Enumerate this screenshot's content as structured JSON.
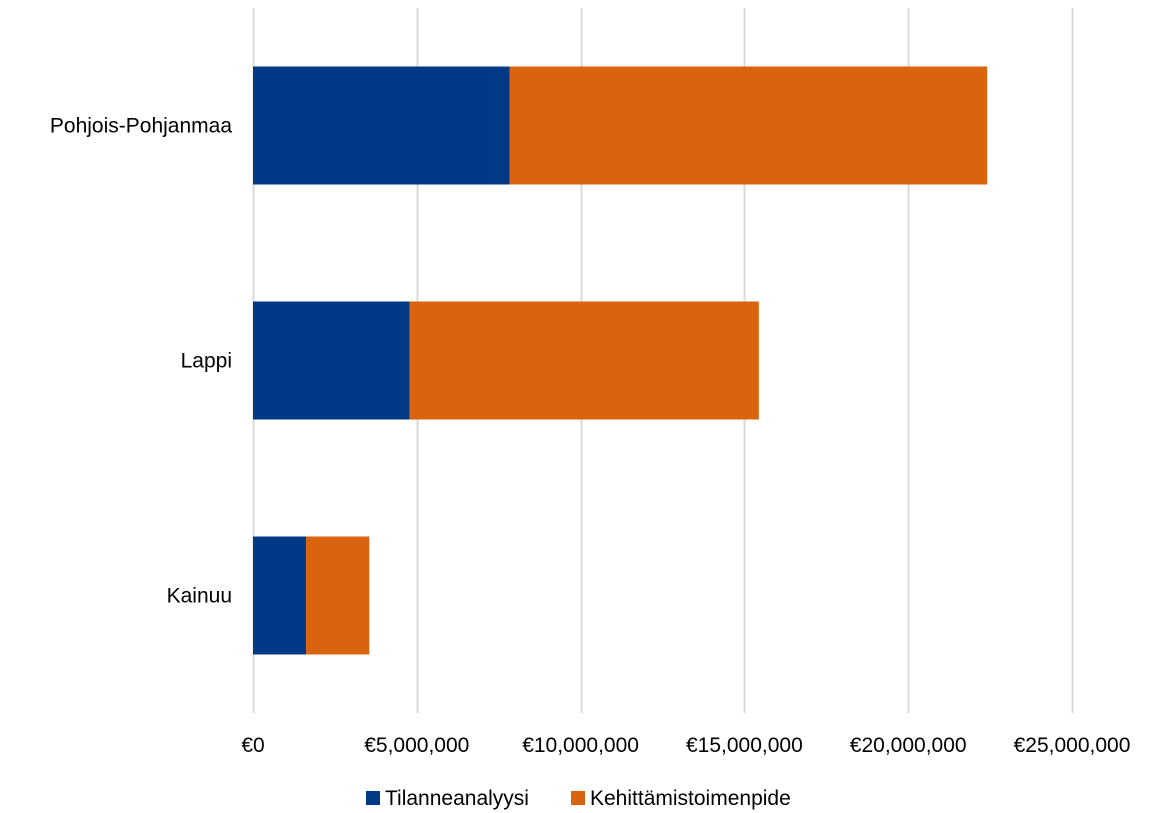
{
  "colors": {
    "series_1": "#003A86",
    "series_2": "#D9630E",
    "gridline": "#D9D9D9",
    "text": "#000000",
    "background": "#FFFFFF"
  },
  "chart_data": {
    "type": "bar",
    "orientation": "horizontal",
    "stacked": true,
    "categories": [
      "Pohjois-Pohjanmaa",
      "Lappi",
      "Kainuu"
    ],
    "series": [
      {
        "name": "Tilanneanalyysi",
        "values": [
          7830000,
          4780000,
          1620000
        ]
      },
      {
        "name": "Kehittämistoimenpide",
        "values": [
          14580000,
          10660000,
          1930000
        ]
      }
    ],
    "x_ticks": [
      0,
      5000000,
      10000000,
      15000000,
      20000000,
      25000000
    ],
    "x_tick_labels": [
      "€0",
      "€5,000,000",
      "€10,000,000",
      "€15,000,000",
      "€20,000,000",
      "€25,000,000"
    ],
    "xlim": [
      0,
      25000000
    ],
    "grid": "vertical",
    "legend": "bottom",
    "title": "",
    "xlabel": "",
    "ylabel": ""
  }
}
